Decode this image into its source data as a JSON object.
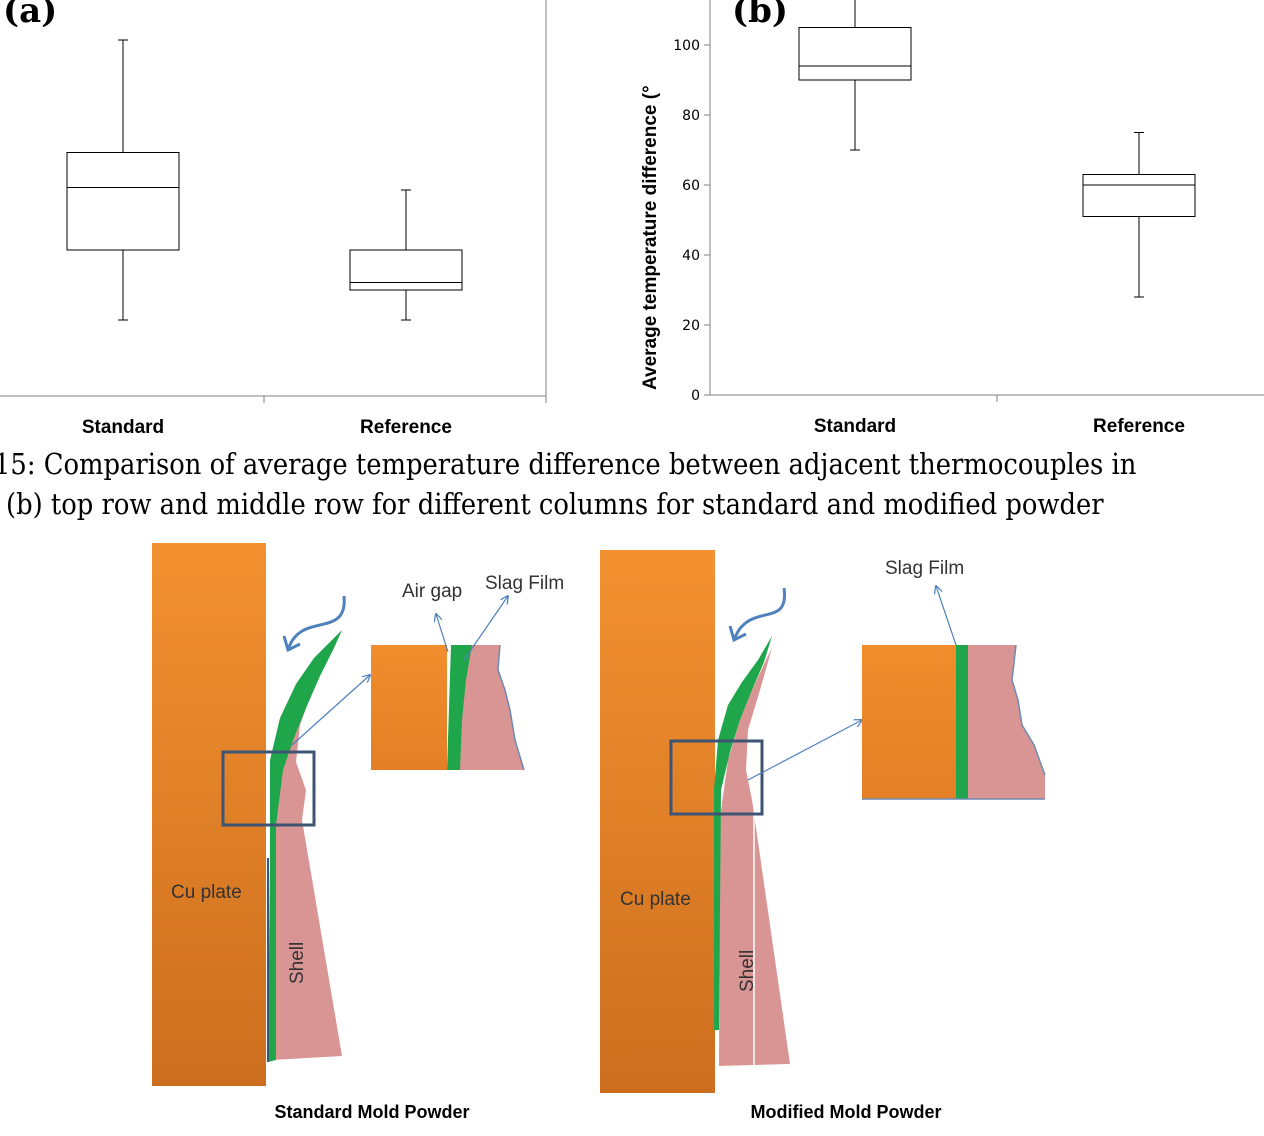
{
  "chart_data": [
    {
      "type": "box",
      "panel_label": "(a)",
      "categories": [
        "Standard",
        "Reference"
      ],
      "boxes": [
        {
          "min": 28,
          "q1": 56,
          "median": 81,
          "q3": 95,
          "max": 140
        },
        {
          "min": 28,
          "q1": 40,
          "median": 43,
          "q3": 56,
          "max": 80
        }
      ],
      "ylim": [
        0,
        140
      ],
      "ylabel": "",
      "yticks_visible": false
    },
    {
      "type": "box",
      "panel_label": "(b)",
      "categories": [
        "Standard",
        "Reference"
      ],
      "boxes": [
        {
          "min": 70,
          "q1": 90,
          "median": 94,
          "q3": 105,
          "max": 115
        },
        {
          "min": 28,
          "q1": 51,
          "median": 60,
          "q3": 63,
          "max": 75
        }
      ],
      "ylim": [
        0,
        115
      ],
      "yticks": [
        0,
        20,
        40,
        60,
        80,
        100
      ],
      "ylabel": "Average temperature difference (°"
    }
  ],
  "caption": {
    "line1": "15: Comparison of average temperature difference between adjacent thermocouples in",
    "line2": "(b) top row and middle row for different columns for standard and modified powder"
  },
  "diagram": {
    "left": {
      "plate_label": "Cu plate",
      "shell_label": "Shell",
      "air_gap_label": "Air gap",
      "slag_film_label": "Slag Film",
      "title": "Standard Mold Powder"
    },
    "right": {
      "plate_label": "Cu plate",
      "shell_label": "Shell",
      "slag_film_label": "Slag Film",
      "title": "Modified Mold Powder"
    },
    "colors": {
      "plate_top": "#f39130",
      "plate_bottom": "#cc6e1e",
      "slag": "#1fa64a",
      "shell": "#d99594",
      "frame": "#3d5573",
      "arrow": "#4f81bd"
    }
  }
}
